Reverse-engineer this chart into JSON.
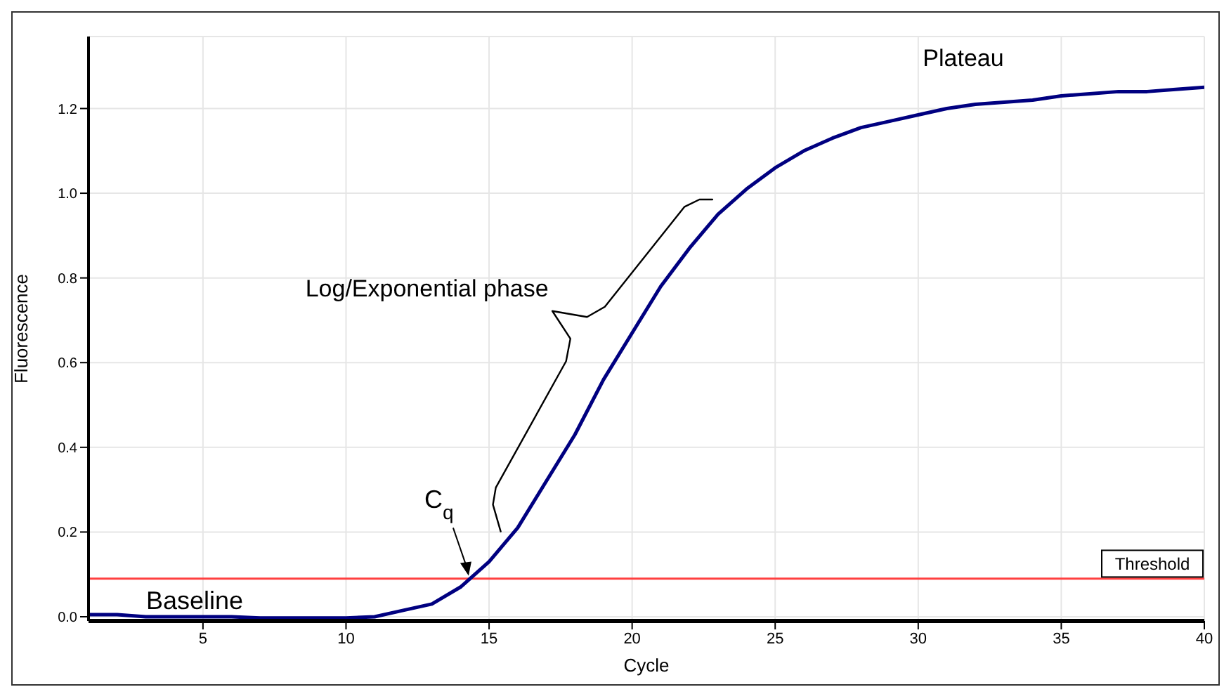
{
  "chart_data": {
    "type": "line",
    "xlabel": "Cycle",
    "ylabel": "Fluorescence",
    "x": [
      1,
      2,
      3,
      4,
      5,
      6,
      7,
      8,
      9,
      10,
      11,
      12,
      13,
      14,
      15,
      16,
      17,
      18,
      19,
      20,
      21,
      22,
      23,
      24,
      25,
      26,
      27,
      28,
      29,
      30,
      31,
      32,
      33,
      34,
      35,
      36,
      37,
      38,
      39,
      40
    ],
    "series": [
      {
        "color": "#000080",
        "values": [
          0.005,
          0.005,
          0.0,
          0.0,
          0.0,
          0.0,
          -0.003,
          -0.003,
          -0.003,
          -0.003,
          0.0,
          0.015,
          0.03,
          0.07,
          0.13,
          0.21,
          0.32,
          0.43,
          0.56,
          0.67,
          0.78,
          0.87,
          0.95,
          1.01,
          1.06,
          1.1,
          1.13,
          1.155,
          1.17,
          1.185,
          1.2,
          1.21,
          1.215,
          1.22,
          1.23,
          1.235,
          1.24,
          1.24,
          1.245,
          1.25
        ]
      }
    ],
    "xlim": [
      1,
      40
    ],
    "xticks": [
      5,
      10,
      15,
      20,
      25,
      30,
      35,
      40
    ],
    "ylim": [
      -0.01,
      1.37
    ],
    "yticks": [
      {
        "value": 0,
        "label": "0.0"
      },
      0.2,
      0.4,
      0.6,
      0.8,
      {
        "value": 1,
        "label": "1.0"
      },
      1.2
    ],
    "grid": true,
    "marker": "none",
    "line_style": "solid",
    "ref_lines": [
      {
        "axis": "y",
        "value": 0.09,
        "label": "Threshold",
        "color": "#ff4040"
      }
    ],
    "annotations": [
      "Plateau",
      "Log/Exponential phase",
      "Baseline",
      {
        "text": "C$_{q}$",
        "x": 14.3,
        "y": 0.09
      }
    ]
  }
}
